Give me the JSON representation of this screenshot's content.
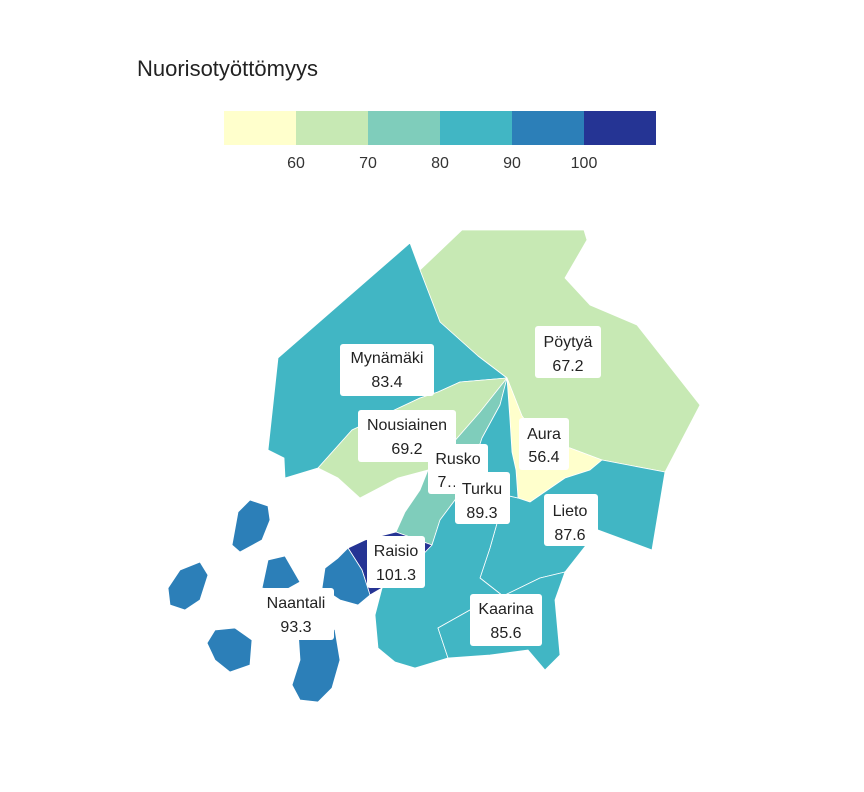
{
  "title": "Nuorisotyöttömyys",
  "legend": {
    "colors": [
      "#ffffcc",
      "#c7e9b4",
      "#7fcdbb",
      "#41b6c4",
      "#2c7fb8",
      "#253494"
    ],
    "ticks": [
      "60",
      "70",
      "80",
      "90",
      "100"
    ]
  },
  "regions": [
    {
      "name": "Pöytyä",
      "value": "67.2",
      "color": "#c7e9b4"
    },
    {
      "name": "Mynämäki",
      "value": "83.4",
      "color": "#41b6c4"
    },
    {
      "name": "Nousiainen",
      "value": "69.2",
      "color": "#c7e9b4"
    },
    {
      "name": "Aura",
      "value": "56.4",
      "color": "#ffffcc"
    },
    {
      "name": "Rusko",
      "value": "7…",
      "color": "#7fcdbb"
    },
    {
      "name": "Turku",
      "value": "89.3",
      "color": "#41b6c4"
    },
    {
      "name": "Lieto",
      "value": "87.6",
      "color": "#41b6c4"
    },
    {
      "name": "Raisio",
      "value": "101.3",
      "color": "#253494"
    },
    {
      "name": "Naantali",
      "value": "93.3",
      "color": "#2c7fb8"
    },
    {
      "name": "Kaarina",
      "value": "85.6",
      "color": "#41b6c4"
    }
  ]
}
